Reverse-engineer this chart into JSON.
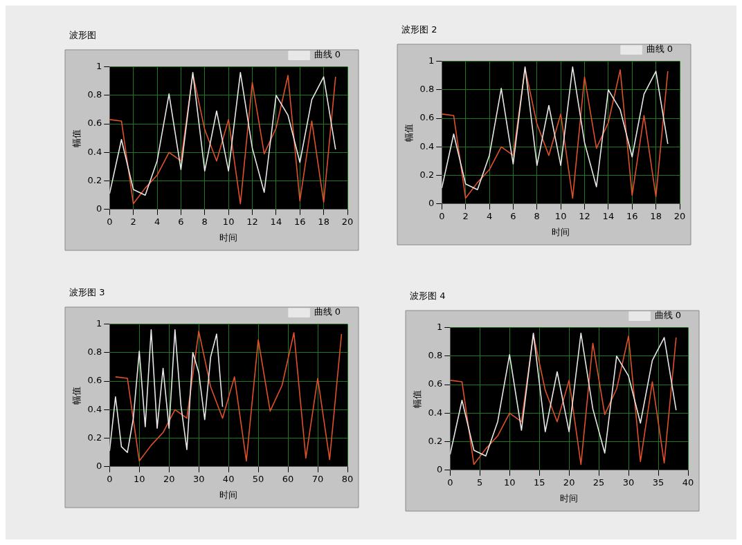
{
  "chart_data": [
    {
      "type": "line",
      "title": "波形图",
      "xlabel": "时间",
      "ylabel": "幅值",
      "xlim": [
        0,
        20
      ],
      "xticks": [
        0,
        2,
        4,
        6,
        8,
        10,
        12,
        14,
        16,
        18,
        20
      ],
      "ylim": [
        0,
        1
      ],
      "yticks": [
        0,
        0.2,
        0.4,
        0.6,
        0.8,
        1
      ],
      "grid": true,
      "legend": "top right",
      "marker": "none",
      "series": [
        {
          "name": "曲线 0",
          "color": "#e8e8e8",
          "x": [
            0,
            1,
            2,
            3,
            4,
            5,
            6,
            7,
            8,
            9,
            10,
            11,
            12,
            13,
            14,
            15,
            16,
            17,
            18,
            19
          ],
          "values": [
            0.11,
            0.49,
            0.14,
            0.1,
            0.34,
            0.81,
            0.28,
            0.96,
            0.27,
            0.69,
            0.27,
            0.96,
            0.43,
            0.12,
            0.8,
            0.66,
            0.33,
            0.77,
            0.93,
            0.42
          ]
        },
        {
          "color": "#e0502a",
          "x": [
            0,
            1,
            2,
            3,
            4,
            5,
            6,
            7,
            8,
            9,
            10,
            11,
            12,
            13,
            14,
            15,
            16,
            17,
            18,
            19
          ],
          "values": [
            0.63,
            0.62,
            0.04,
            0.15,
            0.24,
            0.4,
            0.34,
            0.95,
            0.56,
            0.34,
            0.63,
            0.04,
            0.89,
            0.39,
            0.57,
            0.94,
            0.06,
            0.62,
            0.05,
            0.93
          ]
        }
      ]
    },
    {
      "type": "line",
      "title": "波形图 2",
      "xlabel": "时间",
      "ylabel": "幅值",
      "xlim": [
        0,
        20
      ],
      "xticks": [
        0,
        2,
        4,
        6,
        8,
        10,
        12,
        14,
        16,
        18,
        20
      ],
      "ylim": [
        0,
        1
      ],
      "yticks": [
        0,
        0.2,
        0.4,
        0.6,
        0.8,
        1
      ],
      "grid": true,
      "legend": "top right",
      "marker": "none",
      "series": [
        {
          "name": "曲线 0",
          "color": "#e8e8e8",
          "x": [
            0,
            1,
            2,
            3,
            4,
            5,
            6,
            7,
            8,
            9,
            10,
            11,
            12,
            13,
            14,
            15,
            16,
            17,
            18,
            19
          ],
          "values": [
            0.11,
            0.49,
            0.14,
            0.1,
            0.34,
            0.81,
            0.28,
            0.96,
            0.27,
            0.69,
            0.27,
            0.96,
            0.43,
            0.12,
            0.8,
            0.66,
            0.33,
            0.77,
            0.93,
            0.42
          ]
        },
        {
          "color": "#e0502a",
          "x": [
            0,
            1,
            2,
            3,
            4,
            5,
            6,
            7,
            8,
            9,
            10,
            11,
            12,
            13,
            14,
            15,
            16,
            17,
            18,
            19
          ],
          "values": [
            0.63,
            0.62,
            0.04,
            0.15,
            0.24,
            0.4,
            0.34,
            0.95,
            0.56,
            0.34,
            0.63,
            0.04,
            0.89,
            0.39,
            0.57,
            0.94,
            0.06,
            0.62,
            0.05,
            0.93
          ]
        }
      ]
    },
    {
      "type": "line",
      "title": "波形图 3",
      "xlabel": "时间",
      "ylabel": "幅值",
      "xlim": [
        0,
        80
      ],
      "xticks": [
        0,
        10,
        20,
        30,
        40,
        50,
        60,
        70,
        80
      ],
      "ylim": [
        0,
        1
      ],
      "yticks": [
        0,
        0.2,
        0.4,
        0.6,
        0.8,
        1
      ],
      "grid": true,
      "legend": "top right",
      "marker": "none",
      "series": [
        {
          "name": "曲线 0",
          "color": "#e8e8e8",
          "x": [
            0,
            2,
            4,
            6,
            8,
            10,
            12,
            14,
            16,
            18,
            20,
            22,
            24,
            26,
            28,
            30,
            32,
            34,
            36,
            38
          ],
          "values": [
            0.11,
            0.49,
            0.14,
            0.1,
            0.34,
            0.81,
            0.28,
            0.96,
            0.27,
            0.69,
            0.27,
            0.96,
            0.43,
            0.12,
            0.8,
            0.66,
            0.33,
            0.77,
            0.93,
            0.42
          ]
        },
        {
          "color": "#e0502a",
          "x": [
            2,
            6,
            10,
            14,
            18,
            22,
            26,
            30,
            34,
            38,
            42,
            46,
            50,
            54,
            58,
            62,
            66,
            70,
            74,
            78
          ],
          "values": [
            0.63,
            0.62,
            0.04,
            0.15,
            0.24,
            0.4,
            0.34,
            0.95,
            0.56,
            0.34,
            0.63,
            0.04,
            0.89,
            0.39,
            0.57,
            0.94,
            0.06,
            0.62,
            0.05,
            0.93
          ]
        }
      ]
    },
    {
      "type": "line",
      "title": "波形图 4",
      "xlabel": "时间",
      "ylabel": "幅值",
      "xlim": [
        0,
        40
      ],
      "xticks": [
        0,
        5,
        10,
        15,
        20,
        25,
        30,
        35,
        40
      ],
      "ylim": [
        0,
        1
      ],
      "yticks": [
        0,
        0.2,
        0.4,
        0.6,
        0.8,
        1
      ],
      "grid": true,
      "legend": "top right",
      "marker": "none",
      "series": [
        {
          "name": "曲线 0",
          "color": "#e8e8e8",
          "x": [
            0,
            2,
            4,
            6,
            8,
            10,
            12,
            14,
            16,
            18,
            20,
            22,
            24,
            26,
            28,
            30,
            32,
            34,
            36,
            38
          ],
          "values": [
            0.11,
            0.49,
            0.14,
            0.1,
            0.34,
            0.81,
            0.28,
            0.96,
            0.27,
            0.69,
            0.27,
            0.96,
            0.43,
            0.12,
            0.8,
            0.66,
            0.33,
            0.77,
            0.93,
            0.42
          ]
        },
        {
          "color": "#e0502a",
          "x": [
            0,
            2,
            4,
            6,
            8,
            10,
            12,
            14,
            16,
            18,
            20,
            22,
            24,
            26,
            28,
            30,
            32,
            34,
            36,
            38
          ],
          "values": [
            0.63,
            0.62,
            0.04,
            0.15,
            0.24,
            0.4,
            0.34,
            0.95,
            0.56,
            0.34,
            0.63,
            0.04,
            0.89,
            0.39,
            0.57,
            0.94,
            0.06,
            0.62,
            0.05,
            0.93
          ]
        }
      ]
    }
  ]
}
